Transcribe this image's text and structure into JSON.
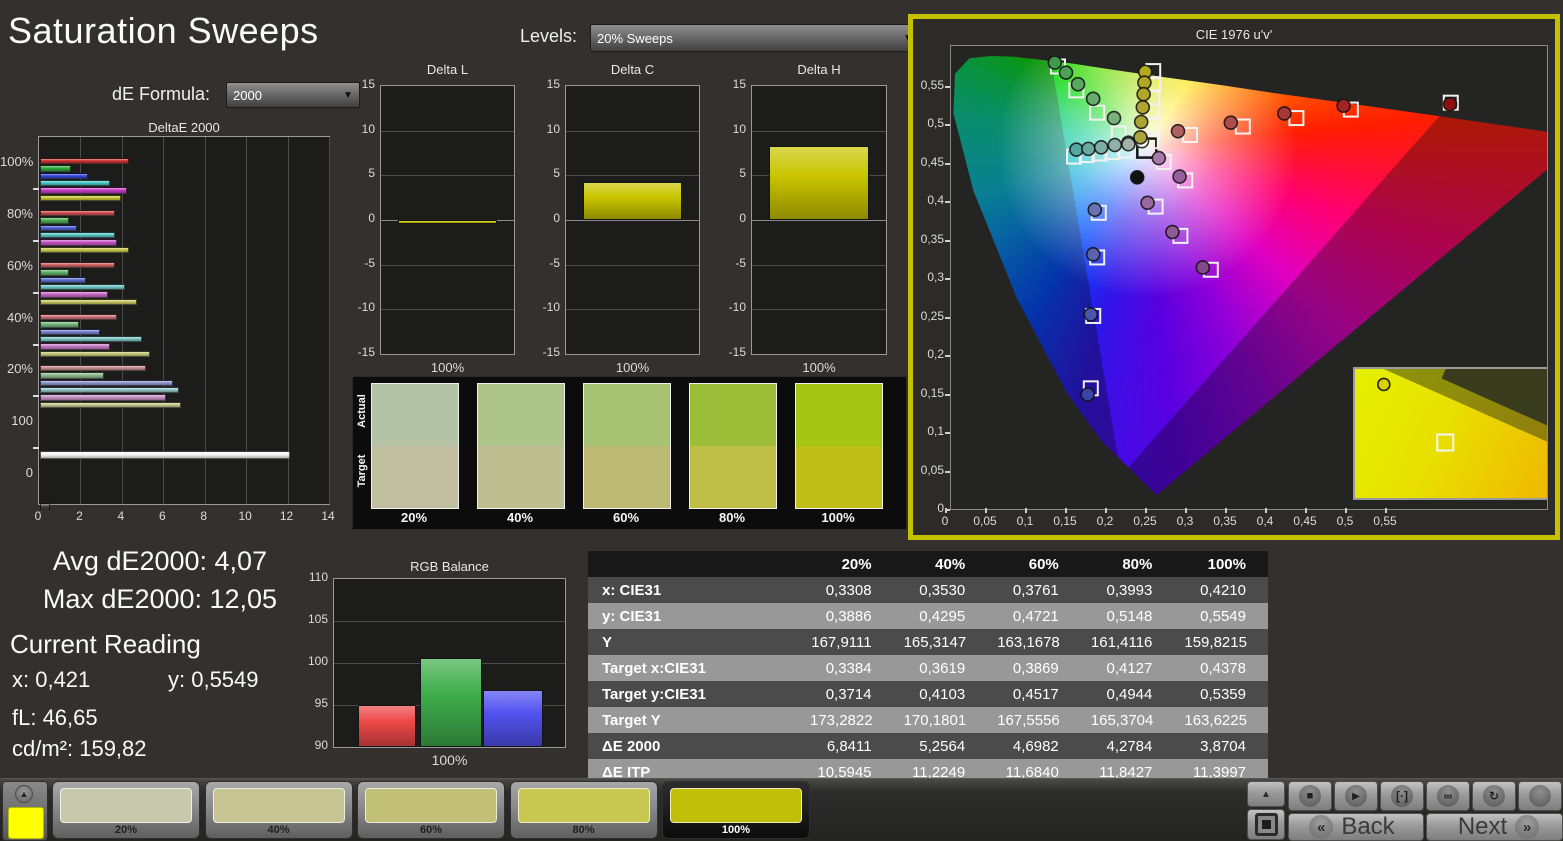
{
  "header": {
    "title": "Saturation Sweeps",
    "de_formula_label": "dE Formula:",
    "de_formula_value": "2000",
    "levels_label": "Levels:",
    "levels_value": "20% Sweeps"
  },
  "stats": {
    "avg": "Avg dE2000: 4,07",
    "max": "Max dE2000: 12,05",
    "current_reading_label": "Current Reading",
    "x": "x: 0,421",
    "y": "y: 0,5549",
    "fl": "fL: 46,65",
    "cdm2": "cd/m²: 159,82"
  },
  "chart_data": [
    {
      "id": "deltae2000",
      "type": "bar",
      "orientation": "horizontal",
      "title": "DeltaE 2000",
      "xlim": [
        0,
        14
      ],
      "xticks": [
        0,
        2,
        4,
        6,
        8,
        10,
        12,
        14
      ],
      "series_names": [
        "Red",
        "Green",
        "Blue",
        "Cyan",
        "Magenta",
        "Yellow"
      ],
      "series_colors": [
        "#d03030",
        "#2ea83c",
        "#3448d8",
        "#46c8c8",
        "#c43cc4",
        "#c8c832"
      ],
      "groups": [
        {
          "label": "100%",
          "fade": 0.0,
          "values": [
            4.3,
            1.5,
            2.3,
            3.4,
            4.2,
            3.9
          ]
        },
        {
          "label": "80%",
          "fade": 0.18,
          "values": [
            3.6,
            1.4,
            1.8,
            3.6,
            3.7,
            4.3
          ]
        },
        {
          "label": "60%",
          "fade": 0.32,
          "values": [
            3.6,
            1.4,
            2.2,
            4.1,
            3.3,
            4.7
          ]
        },
        {
          "label": "40%",
          "fade": 0.45,
          "values": [
            3.7,
            1.9,
            2.9,
            4.9,
            3.4,
            5.3
          ]
        },
        {
          "label": "20%",
          "fade": 0.62,
          "values": [
            5.1,
            3.1,
            6.4,
            6.7,
            6.1,
            6.8
          ]
        },
        {
          "label": "100",
          "single": "white",
          "values": [
            12.05
          ]
        },
        {
          "label": "0",
          "single": "black",
          "values": [
            0.5
          ]
        }
      ]
    },
    {
      "id": "delta_l",
      "type": "bar",
      "title": "Delta L",
      "ylim": [
        -15,
        15
      ],
      "yticks": [
        15,
        10,
        5,
        0,
        -5,
        -10,
        -15
      ],
      "categories": [
        "100%"
      ],
      "values": [
        -0.4
      ],
      "bar_color": "#c9c500"
    },
    {
      "id": "delta_c",
      "type": "bar",
      "title": "Delta C",
      "ylim": [
        -15,
        15
      ],
      "yticks": [
        15,
        10,
        5,
        0,
        -5,
        -10,
        -15
      ],
      "categories": [
        "100%"
      ],
      "values": [
        4.2
      ],
      "bar_color": "#c9c500"
    },
    {
      "id": "delta_h",
      "type": "bar",
      "title": "Delta H",
      "ylim": [
        -15,
        15
      ],
      "yticks": [
        15,
        10,
        5,
        0,
        -5,
        -10,
        -15
      ],
      "categories": [
        "100%"
      ],
      "values": [
        8.3
      ],
      "bar_color": "#c9c500"
    },
    {
      "id": "rgb_balance",
      "type": "bar",
      "title": "RGB Balance",
      "ylim": [
        90,
        110
      ],
      "yticks": [
        110,
        105,
        100,
        95,
        90
      ],
      "categories": [
        "100%"
      ],
      "series": [
        {
          "name": "Red",
          "value": 95.0
        },
        {
          "name": "Green",
          "value": 100.6
        },
        {
          "name": "Blue",
          "value": 96.8
        }
      ],
      "colors": [
        "#ee4848",
        "#3fae4c",
        "#5252f0"
      ]
    },
    {
      "id": "cie",
      "type": "scatter",
      "title": "CIE 1976 u'v'",
      "xlim": [
        0,
        0.75
      ],
      "ylim": [
        0,
        0.6
      ],
      "xticks": [
        0,
        0.05,
        0.1,
        0.15,
        0.2,
        0.25,
        0.3,
        0.35,
        0.4,
        0.45,
        0.5,
        0.55
      ],
      "yticks": [
        0,
        0.05,
        0.1,
        0.15,
        0.2,
        0.25,
        0.3,
        0.35,
        0.4,
        0.45,
        0.5,
        0.55
      ],
      "measured": [
        {
          "u": 0.136,
          "v": 0.581,
          "c": "#3f9a4e"
        },
        {
          "u": 0.15,
          "v": 0.568,
          "c": "#4aa257"
        },
        {
          "u": 0.165,
          "v": 0.553,
          "c": "#57a861"
        },
        {
          "u": 0.184,
          "v": 0.534,
          "c": "#68ad6d"
        },
        {
          "u": 0.21,
          "v": 0.509,
          "c": "#7cb07c"
        },
        {
          "u": 0.228,
          "v": 0.477,
          "c": "#8cab8c"
        },
        {
          "u": 0.163,
          "v": 0.468,
          "c": "#55a8a0"
        },
        {
          "u": 0.178,
          "v": 0.469,
          "c": "#68aaa2"
        },
        {
          "u": 0.194,
          "v": 0.471,
          "c": "#7cada5"
        },
        {
          "u": 0.211,
          "v": 0.474,
          "c": "#90afa8"
        },
        {
          "u": 0.228,
          "v": 0.475,
          "c": "#a5b2ab"
        },
        {
          "u": 0.245,
          "v": 0.479,
          "c": "#ffffff"
        },
        {
          "u": 0.249,
          "v": 0.569,
          "c": "#b3a81e"
        },
        {
          "u": 0.248,
          "v": 0.555,
          "c": "#b2a724"
        },
        {
          "u": 0.247,
          "v": 0.54,
          "c": "#b1a62a"
        },
        {
          "u": 0.246,
          "v": 0.523,
          "c": "#b0a530"
        },
        {
          "u": 0.244,
          "v": 0.504,
          "c": "#aea436"
        },
        {
          "u": 0.243,
          "v": 0.484,
          "c": "#aca33c"
        },
        {
          "u": 0.29,
          "v": 0.492,
          "c": "#b06060"
        },
        {
          "u": 0.356,
          "v": 0.503,
          "c": "#ae4c4c"
        },
        {
          "u": 0.423,
          "v": 0.515,
          "c": "#a83838"
        },
        {
          "u": 0.497,
          "v": 0.525,
          "c": "#a22424"
        },
        {
          "u": 0.63,
          "v": 0.527,
          "c": "#8c1010"
        },
        {
          "u": 0.266,
          "v": 0.457,
          "c": "#a878a8"
        },
        {
          "u": 0.292,
          "v": 0.433,
          "c": "#96609a"
        },
        {
          "u": 0.252,
          "v": 0.399,
          "c": "#9a6a9e"
        },
        {
          "u": 0.283,
          "v": 0.361,
          "c": "#8f5a96"
        },
        {
          "u": 0.321,
          "v": 0.315,
          "c": "#84488c"
        },
        {
          "u": 0.239,
          "v": 0.432,
          "c": "#111111"
        },
        {
          "u": 0.186,
          "v": 0.39,
          "c": "#6a74b2"
        },
        {
          "u": 0.184,
          "v": 0.332,
          "c": "#5a64ae"
        },
        {
          "u": 0.181,
          "v": 0.254,
          "c": "#4a54aa"
        },
        {
          "u": 0.177,
          "v": 0.15,
          "c": "#3a44a6"
        }
      ],
      "targets": [
        {
          "u": 0.14,
          "v": 0.576
        },
        {
          "u": 0.163,
          "v": 0.545
        },
        {
          "u": 0.189,
          "v": 0.516
        },
        {
          "u": 0.216,
          "v": 0.489
        },
        {
          "u": 0.16,
          "v": 0.459
        },
        {
          "u": 0.176,
          "v": 0.461
        },
        {
          "u": 0.192,
          "v": 0.463
        },
        {
          "u": 0.208,
          "v": 0.465
        },
        {
          "u": 0.224,
          "v": 0.467
        },
        {
          "u": 0.251,
          "v": 0.47,
          "ring": "black"
        },
        {
          "u": 0.259,
          "v": 0.57
        },
        {
          "u": 0.259,
          "v": 0.553
        },
        {
          "u": 0.258,
          "v": 0.536
        },
        {
          "u": 0.258,
          "v": 0.518
        },
        {
          "u": 0.257,
          "v": 0.499
        },
        {
          "u": 0.256,
          "v": 0.479
        },
        {
          "u": 0.305,
          "v": 0.487
        },
        {
          "u": 0.371,
          "v": 0.498
        },
        {
          "u": 0.438,
          "v": 0.509
        },
        {
          "u": 0.506,
          "v": 0.52
        },
        {
          "u": 0.631,
          "v": 0.529
        },
        {
          "u": 0.272,
          "v": 0.452
        },
        {
          "u": 0.299,
          "v": 0.428
        },
        {
          "u": 0.262,
          "v": 0.394
        },
        {
          "u": 0.293,
          "v": 0.356
        },
        {
          "u": 0.331,
          "v": 0.312
        },
        {
          "u": 0.191,
          "v": 0.386
        },
        {
          "u": 0.189,
          "v": 0.328
        },
        {
          "u": 0.184,
          "v": 0.252
        },
        {
          "u": 0.181,
          "v": 0.158
        }
      ],
      "inset": {
        "point": {
          "x": 0.15,
          "y": 0.12,
          "c": "#ddd000"
        },
        "target": {
          "x": 0.47,
          "y": 0.57
        }
      }
    }
  ],
  "swatch_panel": {
    "row_labels": [
      "Actual",
      "Target"
    ],
    "items": [
      {
        "label": "20%",
        "actual": "#b4c3a6",
        "target": "#c1bfa0"
      },
      {
        "label": "40%",
        "actual": "#adc48b",
        "target": "#bfbe91"
      },
      {
        "label": "60%",
        "actual": "#a7c273",
        "target": "#bdbb73"
      },
      {
        "label": "80%",
        "actual": "#9cbd37",
        "target": "#bfbe46"
      },
      {
        "label": "100%",
        "actual": "#a4c613",
        "target": "#c0bf19"
      }
    ]
  },
  "table": {
    "col_headers": [
      "20%",
      "40%",
      "60%",
      "80%",
      "100%"
    ],
    "rows": [
      {
        "label": "x: CIE31",
        "values": [
          "0,3308",
          "0,3530",
          "0,3761",
          "0,3993",
          "0,4210"
        ]
      },
      {
        "label": "y: CIE31",
        "values": [
          "0,3886",
          "0,4295",
          "0,4721",
          "0,5148",
          "0,5549"
        ]
      },
      {
        "label": "Y",
        "values": [
          "167,9111",
          "165,3147",
          "163,1678",
          "161,4116",
          "159,8215"
        ]
      },
      {
        "label": "Target x:CIE31",
        "values": [
          "0,3384",
          "0,3619",
          "0,3869",
          "0,4127",
          "0,4378"
        ]
      },
      {
        "label": "Target y:CIE31",
        "values": [
          "0,3714",
          "0,4103",
          "0,4517",
          "0,4944",
          "0,5359"
        ]
      },
      {
        "label": "Target Y",
        "values": [
          "173,2822",
          "170,1801",
          "167,5556",
          "165,3704",
          "163,6225"
        ]
      },
      {
        "label": "ΔE 2000",
        "values": [
          "6,8411",
          "5,2564",
          "4,6982",
          "4,2784",
          "3,8704"
        ]
      },
      {
        "label": "ΔE ITP",
        "values": [
          "10,5945",
          "11,2249",
          "11,6840",
          "11,8427",
          "11,3997"
        ]
      }
    ]
  },
  "bottom_bar": {
    "preview_color": "#ffff00",
    "patterns": [
      {
        "label": "20%",
        "color": "#c7c9ad",
        "selected": false
      },
      {
        "label": "40%",
        "color": "#c6c493",
        "selected": false
      },
      {
        "label": "60%",
        "color": "#c2c077",
        "selected": false
      },
      {
        "label": "80%",
        "color": "#c8c751",
        "selected": false
      },
      {
        "label": "100%",
        "color": "#c2bf0b",
        "selected": true
      }
    ],
    "transport": [
      "stop",
      "play",
      "step",
      "infinite",
      "refresh",
      "blank"
    ],
    "back_label": "Back",
    "next_label": "Next"
  }
}
